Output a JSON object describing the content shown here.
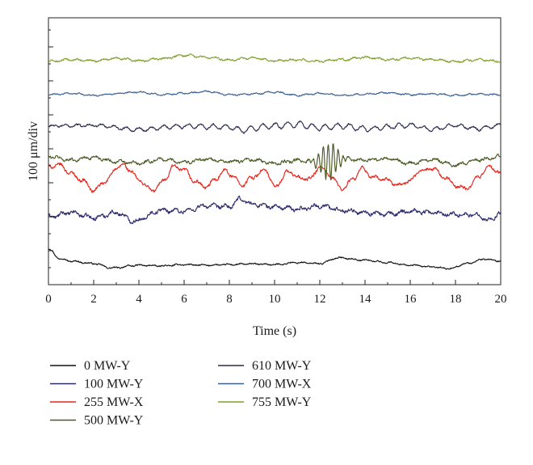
{
  "chart_data": {
    "type": "line",
    "xlabel": "Time (s)",
    "ylabel": "100 μm/div",
    "xlim": [
      0,
      20
    ],
    "xticks": [
      0,
      2,
      4,
      6,
      8,
      10,
      12,
      14,
      16,
      18,
      20
    ],
    "grid": false,
    "legend": {
      "placement": "bottom",
      "columns": 2
    },
    "y_unit_per_div": 100,
    "series": [
      {
        "name": "0 MW-Y",
        "color": "#111111",
        "offset_div": 0,
        "knots": [
          [
            0,
            0.48
          ],
          [
            0.5,
            0.2
          ],
          [
            1,
            0.12
          ],
          [
            2,
            0.05
          ],
          [
            2.8,
            -0.08
          ],
          [
            4,
            0.0
          ],
          [
            5,
            -0.02
          ],
          [
            6,
            0.02
          ],
          [
            7,
            0.0
          ],
          [
            8,
            0.02
          ],
          [
            9,
            0.04
          ],
          [
            10,
            0.02
          ],
          [
            11,
            0.08
          ],
          [
            12,
            0.05
          ],
          [
            12.8,
            0.22
          ],
          [
            14,
            0.15
          ],
          [
            15,
            0.08
          ],
          [
            16,
            0.0
          ],
          [
            17,
            -0.05
          ],
          [
            17.7,
            -0.1
          ],
          [
            18.5,
            0.05
          ],
          [
            19.3,
            0.18
          ],
          [
            20,
            0.12
          ]
        ],
        "noise": 0.025,
        "osc": null
      },
      {
        "name": "100 MW-Y",
        "color": "#2a2a6e",
        "offset_div": 1,
        "knots": [
          [
            0,
            0.42
          ],
          [
            1,
            0.55
          ],
          [
            2,
            0.4
          ],
          [
            3,
            0.55
          ],
          [
            3.8,
            0.3
          ],
          [
            5,
            0.62
          ],
          [
            6,
            0.6
          ],
          [
            7,
            0.75
          ],
          [
            8,
            0.72
          ],
          [
            8.5,
            0.95
          ],
          [
            9,
            0.8
          ],
          [
            10,
            0.72
          ],
          [
            11,
            0.65
          ],
          [
            12,
            0.75
          ],
          [
            13,
            0.62
          ],
          [
            14,
            0.55
          ],
          [
            15,
            0.5
          ],
          [
            16,
            0.6
          ],
          [
            17,
            0.55
          ],
          [
            18,
            0.5
          ],
          [
            19,
            0.48
          ],
          [
            19.5,
            0.32
          ],
          [
            20,
            0.55
          ]
        ],
        "noise": 0.07,
        "osc": null
      },
      {
        "name": "255 MW-X",
        "color": "#e8241c",
        "offset_div": 2,
        "knots": [
          [
            0,
            0.9
          ],
          [
            0.5,
            0.95
          ],
          [
            1,
            0.7
          ],
          [
            1.5,
            0.5
          ],
          [
            2,
            0.2
          ],
          [
            2.5,
            0.45
          ],
          [
            3,
            0.85
          ],
          [
            3.3,
            0.95
          ],
          [
            3.6,
            0.8
          ],
          [
            4,
            0.5
          ],
          [
            4.6,
            0.2
          ],
          [
            5.2,
            0.55
          ],
          [
            5.5,
            0.9
          ],
          [
            6,
            0.8
          ],
          [
            6.5,
            0.45
          ],
          [
            7,
            0.3
          ],
          [
            7.4,
            0.55
          ],
          [
            7.8,
            0.8
          ],
          [
            8.2,
            0.6
          ],
          [
            8.6,
            0.35
          ],
          [
            9,
            0.6
          ],
          [
            9.6,
            0.8
          ],
          [
            10,
            0.3
          ],
          [
            10.6,
            0.75
          ],
          [
            11.2,
            0.55
          ],
          [
            11.6,
            0.55
          ],
          [
            12,
            0.9
          ],
          [
            12.5,
            0.6
          ],
          [
            13,
            0.25
          ],
          [
            13.5,
            0.55
          ],
          [
            13.9,
            0.85
          ],
          [
            14.3,
            0.6
          ],
          [
            15,
            0.5
          ],
          [
            15.5,
            0.35
          ],
          [
            16,
            0.5
          ],
          [
            16.5,
            0.8
          ],
          [
            17,
            0.85
          ],
          [
            17.5,
            0.6
          ],
          [
            18,
            0.35
          ],
          [
            18.5,
            0.25
          ],
          [
            19,
            0.6
          ],
          [
            19.5,
            0.9
          ],
          [
            20,
            0.7
          ]
        ],
        "noise": 0.06,
        "osc": null
      },
      {
        "name": "500 MW-Y",
        "color": "#4a5a24",
        "offset_div": 3,
        "knots": [
          [
            0,
            0.2
          ],
          [
            1,
            0.1
          ],
          [
            2,
            0.18
          ],
          [
            3,
            0.05
          ],
          [
            4,
            0.0
          ],
          [
            5,
            0.12
          ],
          [
            6,
            0.04
          ],
          [
            7,
            0.12
          ],
          [
            8,
            0.05
          ],
          [
            9,
            0.1
          ],
          [
            10,
            0.0
          ],
          [
            11,
            0.08
          ],
          [
            12,
            0.05
          ],
          [
            13,
            0.12
          ],
          [
            14,
            0.1
          ],
          [
            15,
            0.14
          ],
          [
            16,
            0.0
          ],
          [
            17,
            0.12
          ],
          [
            18,
            -0.05
          ],
          [
            19,
            0.1
          ],
          [
            20,
            0.2
          ]
        ],
        "noise": 0.055,
        "osc": {
          "center": 12.4,
          "width": 1.0,
          "amp": 0.55,
          "period": 0.22
        }
      },
      {
        "name": "610 MW-Y",
        "color": "#2a2a4e",
        "offset_div": 4,
        "knots": [
          [
            0,
            0.1
          ],
          [
            2,
            0.12
          ],
          [
            4,
            0.0
          ],
          [
            6,
            0.1
          ],
          [
            8,
            0.08
          ],
          [
            8.5,
            -0.02
          ],
          [
            10,
            0.1
          ],
          [
            11,
            0.15
          ],
          [
            12,
            0.05
          ],
          [
            13,
            0.1
          ],
          [
            14,
            0.02
          ],
          [
            16,
            0.12
          ],
          [
            17,
            0.0
          ],
          [
            18,
            0.12
          ],
          [
            19,
            0.02
          ],
          [
            20,
            0.12
          ]
        ],
        "noise": 0.035,
        "osc": {
          "center": 10,
          "width": 20,
          "amp": 0.1,
          "period": 0.55
        }
      },
      {
        "name": "700 MW-X",
        "color": "#3b5f8f",
        "offset_div": 5,
        "knots": [
          [
            0,
            0.02
          ],
          [
            1,
            0.06
          ],
          [
            2,
            0.0
          ],
          [
            3,
            0.05
          ],
          [
            4,
            0.1
          ],
          [
            5,
            0.02
          ],
          [
            6,
            0.06
          ],
          [
            7,
            0.12
          ],
          [
            8,
            0.02
          ],
          [
            9,
            0.04
          ],
          [
            10,
            0.1
          ],
          [
            11,
            0.0
          ],
          [
            12,
            0.06
          ],
          [
            13,
            0.0
          ],
          [
            14,
            0.04
          ],
          [
            15,
            0.08
          ],
          [
            16,
            0.02
          ],
          [
            17,
            0.05
          ],
          [
            18,
            0.0
          ],
          [
            19,
            0.04
          ],
          [
            20,
            0.02
          ]
        ],
        "noise": 0.025,
        "osc": null
      },
      {
        "name": "755 MW-Y",
        "color": "#7fa02a",
        "offset_div": 6,
        "knots": [
          [
            0,
            0.0
          ],
          [
            1,
            0.05
          ],
          [
            2,
            0.02
          ],
          [
            3,
            0.1
          ],
          [
            4,
            0.02
          ],
          [
            5,
            0.08
          ],
          [
            6,
            0.18
          ],
          [
            7,
            0.12
          ],
          [
            8,
            0.05
          ],
          [
            9,
            0.1
          ],
          [
            10,
            0.02
          ],
          [
            11,
            0.05
          ],
          [
            12,
            0.0
          ],
          [
            13,
            0.05
          ],
          [
            14,
            0.12
          ],
          [
            15,
            0.05
          ],
          [
            16,
            0.1
          ],
          [
            17,
            0.05
          ],
          [
            18,
            0.0
          ],
          [
            19,
            0.05
          ],
          [
            20,
            0.0
          ]
        ],
        "noise": 0.035,
        "osc": null
      }
    ]
  }
}
